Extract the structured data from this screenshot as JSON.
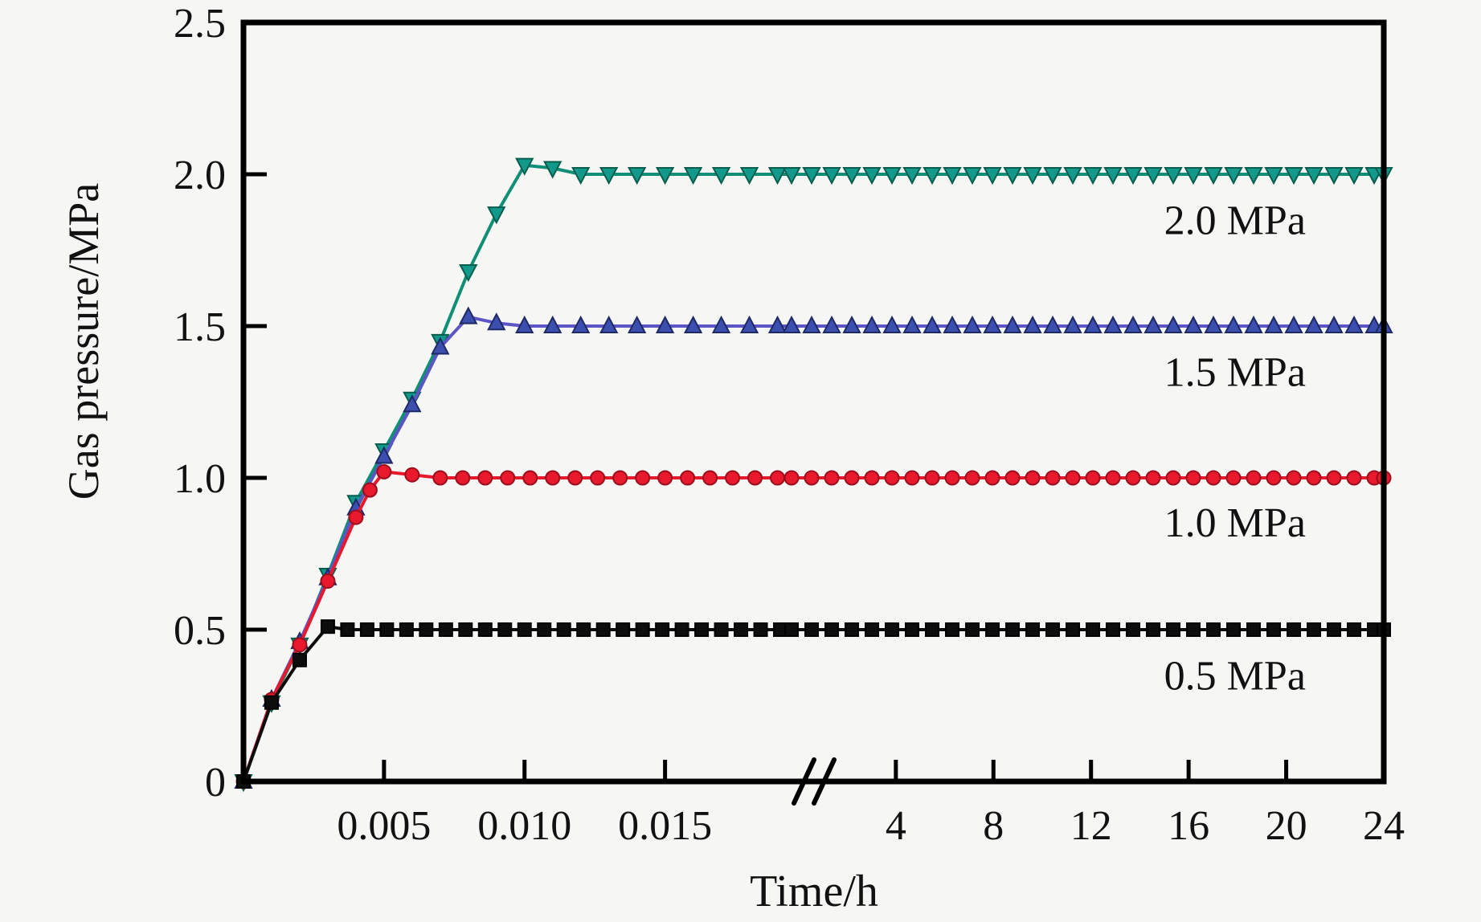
{
  "chart_data": {
    "type": "line",
    "title": "",
    "xlabel": "Time/h",
    "ylabel": "Gas pressure/MPa",
    "background": "#f6f6f4",
    "frame_color": "#000000",
    "grid": false,
    "legend_position": "inline-right-annotations",
    "y_axis": {
      "min": 0,
      "max": 2.5,
      "ticks": [
        0,
        0.5,
        1.0,
        1.5,
        2.0,
        2.5
      ],
      "tick_labels": [
        "0",
        "0.5",
        "1.0",
        "1.5",
        "2.0",
        "2.5"
      ]
    },
    "x_axis": {
      "broken": true,
      "break_symbol": "//",
      "left_segment": {
        "min": 0,
        "max": 0.0195,
        "ticks": [
          0.005,
          0.01,
          0.015
        ],
        "tick_labels": [
          "0.005",
          "0.010",
          "0.015"
        ]
      },
      "right_segment": {
        "min": 1.7,
        "max": 24,
        "ticks": [
          4,
          8,
          12,
          16,
          20,
          24
        ],
        "tick_labels": [
          "4",
          "8",
          "12",
          "16",
          "20",
          "24"
        ]
      }
    },
    "series": [
      {
        "name": "2.0 MPa",
        "marker": "triangle-down",
        "marker_color": "#12998b",
        "marker_edge": "#075e4d",
        "line_color": "#108f76",
        "rise": [
          [
            0,
            0
          ],
          [
            0.001,
            0.26
          ],
          [
            0.002,
            0.45
          ],
          [
            0.003,
            0.68
          ],
          [
            0.004,
            0.92
          ],
          [
            0.005,
            1.09
          ],
          [
            0.006,
            1.26
          ],
          [
            0.007,
            1.45
          ],
          [
            0.008,
            1.68
          ],
          [
            0.009,
            1.87
          ],
          [
            0.01,
            2.03
          ],
          [
            0.011,
            2.02
          ]
        ],
        "plateau": {
          "start": 0.012,
          "end": 24,
          "value": 2.0
        },
        "marker_step_left_h": 0.001,
        "label": {
          "text": "2.0 MPa",
          "t": 17.9,
          "v": 1.85
        }
      },
      {
        "name": "1.5 MPa",
        "marker": "triangle-up",
        "marker_color": "#3c4fae",
        "marker_edge": "#1e2a66",
        "line_color": "#5d55c5",
        "rise": [
          [
            0,
            0
          ],
          [
            0.001,
            0.27
          ],
          [
            0.002,
            0.46
          ],
          [
            0.003,
            0.67
          ],
          [
            0.004,
            0.9
          ],
          [
            0.005,
            1.07
          ],
          [
            0.006,
            1.24
          ],
          [
            0.007,
            1.43
          ],
          [
            0.008,
            1.53
          ],
          [
            0.009,
            1.51
          ]
        ],
        "plateau": {
          "start": 0.01,
          "end": 24,
          "value": 1.5
        },
        "marker_step_left_h": 0.001,
        "label": {
          "text": "1.5 MPa",
          "t": 17.9,
          "v": 1.35
        }
      },
      {
        "name": "1.0 MPa",
        "marker": "circle",
        "marker_color": "#e8192c",
        "marker_edge": "#9b0e1d",
        "line_color": "#e8192c",
        "rise": [
          [
            0,
            0
          ],
          [
            0.001,
            0.27
          ],
          [
            0.002,
            0.45
          ],
          [
            0.003,
            0.66
          ],
          [
            0.004,
            0.87
          ],
          [
            0.0045,
            0.96
          ],
          [
            0.005,
            1.02
          ],
          [
            0.006,
            1.01
          ]
        ],
        "plateau": {
          "start": 0.007,
          "end": 24,
          "value": 1.0
        },
        "marker_step_left_h": 0.0008,
        "label": {
          "text": "1.0 MPa",
          "t": 17.9,
          "v": 0.855
        }
      },
      {
        "name": "0.5 MPa",
        "marker": "square",
        "marker_color": "#0d0d0d",
        "marker_edge": "#000000",
        "line_color": "#0d0d0d",
        "rise": [
          [
            0,
            0
          ],
          [
            0.001,
            0.26
          ],
          [
            0.002,
            0.4
          ],
          [
            0.003,
            0.51
          ]
        ],
        "plateau": {
          "start": 0.0037,
          "end": 24,
          "value": 0.5
        },
        "marker_step_left_h": 0.0007,
        "label": {
          "text": "0.5 MPa",
          "t": 17.9,
          "v": 0.35
        }
      }
    ]
  }
}
